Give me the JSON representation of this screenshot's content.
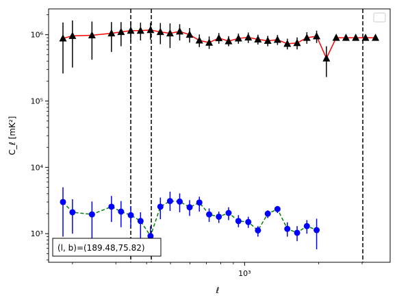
{
  "chart_data": {
    "type": "scatter",
    "title": "",
    "xlabel": "ℓ",
    "ylabel": "C_ℓ  [mK²]",
    "xscale": "log",
    "yscale": "log",
    "xlim": [
      160,
      3900
    ],
    "ylim": [
      370,
      2450000
    ],
    "x_ticks": [
      {
        "value": 1000,
        "label": "10³"
      }
    ],
    "y_ticks": [
      {
        "value": 1000,
        "label": "10³"
      },
      {
        "value": 10000,
        "label": "10⁴"
      },
      {
        "value": 100000,
        "label": "10⁵"
      },
      {
        "value": 1000000,
        "label": "10⁶"
      }
    ],
    "grid": false,
    "legend": {
      "placement": "upper right",
      "entries": []
    },
    "x": [
      183,
      200,
      219,
      240,
      263,
      288,
      315,
      345,
      378,
      415,
      455,
      498,
      545,
      598,
      655,
      718,
      786,
      861,
      944,
      1035,
      1133,
      1242,
      1360,
      1491,
      1634,
      1790,
      1961,
      2149,
      2355,
      2580,
      2827,
      3098,
      3400
    ],
    "series": [
      {
        "name": "",
        "marker": "triangle",
        "marker_color": "#000000",
        "line_color": "#ff0000",
        "line_style": "solid",
        "indices": [
          0,
          1,
          3,
          5,
          6,
          7,
          8,
          9,
          10,
          11,
          12,
          13,
          14,
          15,
          16,
          17,
          18,
          19,
          20,
          21,
          22,
          23,
          24,
          25,
          26,
          27,
          28,
          29,
          30,
          31,
          32
        ],
        "values": [
          880000,
          960000,
          980000,
          1050000,
          1100000,
          1150000,
          1150000,
          1180000,
          1100000,
          1050000,
          1120000,
          1000000,
          820000,
          760000,
          890000,
          800000,
          880000,
          910000,
          850000,
          810000,
          840000,
          730000,
          750000,
          900000,
          950000,
          440000,
          900000,
          900000,
          900000,
          900000,
          900000
        ],
        "err_low": [
          620000,
          640000,
          560000,
          500000,
          430000,
          370000,
          330000,
          340000,
          380000,
          420000,
          300000,
          240000,
          170000,
          150000,
          160000,
          130000,
          150000,
          160000,
          140000,
          140000,
          140000,
          130000,
          150000,
          170000,
          200000,
          210000,
          0,
          0,
          0,
          0,
          0
        ],
        "err_high": [
          650000,
          680000,
          600000,
          500000,
          450000,
          430000,
          370000,
          330000,
          400000,
          430000,
          320000,
          260000,
          190000,
          180000,
          170000,
          150000,
          160000,
          170000,
          150000,
          150000,
          150000,
          140000,
          160000,
          190000,
          200000,
          230000,
          0,
          0,
          0,
          0,
          0
        ]
      },
      {
        "name": "",
        "marker": "circle",
        "marker_color": "#0000ff",
        "line_color": "#008000",
        "line_style": "dashed",
        "indices": [
          0,
          1,
          3,
          5,
          6,
          7,
          8,
          9,
          10,
          11,
          12,
          13,
          14,
          15,
          16,
          17,
          18,
          19,
          20,
          21,
          22,
          23,
          24,
          25,
          26
        ],
        "values": [
          3000,
          2100,
          1950,
          2550,
          2150,
          1900,
          1550,
          920,
          2550,
          3100,
          3050,
          2500,
          2950,
          1950,
          1800,
          2050,
          1550,
          1500,
          1120,
          2000,
          2350,
          1180,
          1030,
          1300,
          1130
        ],
        "err_low": [
          2100,
          1100,
          1200,
          1050,
          900,
          650,
          750,
          420,
          900,
          900,
          950,
          650,
          800,
          450,
          350,
          450,
          300,
          280,
          220,
          280,
          300,
          280,
          260,
          300,
          550
        ],
        "err_high": [
          2000,
          1200,
          1100,
          1150,
          950,
          700,
          550,
          380,
          950,
          1200,
          1000,
          700,
          650,
          450,
          350,
          450,
          350,
          300,
          180,
          250,
          200,
          300,
          270,
          300,
          550
        ]
      }
    ],
    "vlines": [
      {
        "x": 345,
        "style": "dashed",
        "color": "#000000"
      },
      {
        "x": 418,
        "style": "dashed",
        "color": "#000000"
      },
      {
        "x": 3020,
        "style": "dashed",
        "color": "#000000"
      }
    ],
    "annotation": {
      "text": "(l, b)=(189.48,75.82)",
      "placement": "lower left"
    }
  }
}
